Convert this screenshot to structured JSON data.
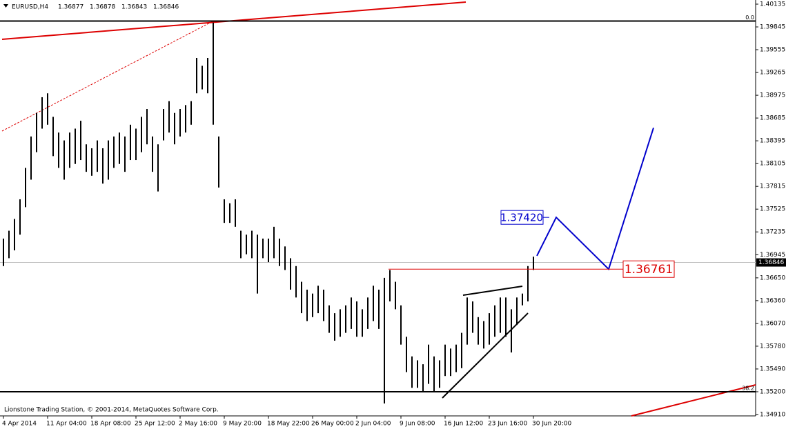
{
  "chart_data": {
    "type": "range",
    "symbol": "EURUSD,H4",
    "ohlc": [
      1.36877,
      1.36878,
      1.36843,
      1.36846
    ],
    "copyright": "Lionstone Trading Station, © 2001-2014, MetaQuotes Software Corp.",
    "categories": [
      "4 Apr 2014",
      null,
      null,
      null,
      null,
      null,
      null,
      null,
      "11 Apr 04:00",
      null,
      null,
      null,
      null,
      null,
      null,
      null,
      "18 Apr 08:00",
      null,
      null,
      null,
      null,
      null,
      null,
      null,
      "25 Apr 12:00",
      null,
      null,
      null,
      null,
      null,
      null,
      null,
      "2 May 16:00",
      null,
      null,
      null,
      null,
      null,
      null,
      null,
      "9 May 20:00",
      null,
      null,
      null,
      null,
      null,
      null,
      null,
      "18 May 22:00",
      null,
      null,
      null,
      null,
      null,
      null,
      null,
      "26 May 00:00",
      null,
      null,
      null,
      null,
      null,
      null,
      null,
      "2 Jun 04:00",
      null,
      null,
      null,
      null,
      null,
      null,
      null,
      "9 Jun 08:00",
      null,
      null,
      null,
      null,
      null,
      null,
      null,
      "16 Jun 12:00",
      null,
      null,
      null,
      null,
      null,
      null,
      null,
      "23 Jun 16:00",
      null,
      null,
      null,
      null,
      null,
      null,
      null,
      "30 Jun 20:00"
    ],
    "high": [
      1.3715,
      1.3725,
      1.374,
      1.3765,
      1.3805,
      1.3845,
      1.3875,
      1.3895,
      1.39,
      1.387,
      1.385,
      1.384,
      1.385,
      1.3855,
      1.3865,
      1.3835,
      1.383,
      1.384,
      1.383,
      1.384,
      1.3845,
      1.385,
      1.3845,
      1.386,
      1.3855,
      1.387,
      1.388,
      1.3845,
      1.3835,
      1.388,
      1.389,
      1.3875,
      1.388,
      1.3885,
      1.389,
      1.3945,
      1.3935,
      1.3945,
      1.399,
      1.3845,
      1.3765,
      1.376,
      1.3765,
      1.3725,
      1.372,
      1.3725,
      1.372,
      1.3715,
      1.3715,
      1.373,
      1.3715,
      1.3705,
      1.369,
      1.368,
      1.366,
      1.365,
      1.3645,
      1.3655,
      1.365,
      1.363,
      1.362,
      1.3625,
      1.363,
      1.364,
      1.3635,
      1.3625,
      1.364,
      1.3655,
      1.365,
      1.3665,
      1.3675,
      1.366,
      1.363,
      1.359,
      1.3565,
      1.356,
      1.3555,
      1.358,
      1.3565,
      1.356,
      1.358,
      1.3575,
      1.358,
      1.3595,
      1.364,
      1.3635,
      1.3615,
      1.361,
      1.362,
      1.363,
      1.364,
      1.364,
      1.3625,
      1.364,
      1.3645,
      1.368,
      1.3692
    ],
    "low": [
      1.368,
      1.369,
      1.37,
      1.372,
      1.3755,
      1.379,
      1.3825,
      1.3855,
      1.386,
      1.382,
      1.3805,
      1.379,
      1.3805,
      1.381,
      1.3815,
      1.38,
      1.3795,
      1.38,
      1.3785,
      1.379,
      1.3805,
      1.381,
      1.38,
      1.3815,
      1.3815,
      1.3825,
      1.3835,
      1.38,
      1.3775,
      1.384,
      1.385,
      1.3835,
      1.3845,
      1.385,
      1.386,
      1.39,
      1.3905,
      1.39,
      1.386,
      1.378,
      1.3735,
      1.3735,
      1.373,
      1.369,
      1.3695,
      1.369,
      1.3645,
      1.369,
      1.3685,
      1.369,
      1.368,
      1.3675,
      1.365,
      1.364,
      1.362,
      1.361,
      1.3615,
      1.362,
      1.361,
      1.3595,
      1.3585,
      1.359,
      1.3595,
      1.36,
      1.359,
      1.359,
      1.36,
      1.361,
      1.36,
      1.3505,
      1.3635,
      1.3625,
      1.358,
      1.3545,
      1.3525,
      1.3525,
      1.352,
      1.353,
      1.352,
      1.3525,
      1.354,
      1.354,
      1.3545,
      1.355,
      1.358,
      1.3595,
      1.358,
      1.3575,
      1.358,
      1.359,
      1.3595,
      1.359,
      1.357,
      1.3605,
      1.363,
      1.3635,
      1.3675
    ],
    "ylim": [
      1.3491,
      1.40135
    ],
    "yticks": [
      1.40135,
      1.39845,
      1.39555,
      1.39265,
      1.38975,
      1.38685,
      1.38395,
      1.38105,
      1.37815,
      1.37525,
      1.37235,
      1.36945,
      {
        "value": 1.3665,
        "label": "1.36650"
      },
      {
        "value": 1.3636,
        "label": "1.36360"
      },
      {
        "value": 1.3607,
        "label": "1.36070"
      },
      {
        "value": 1.3578,
        "label": "1.35780"
      },
      {
        "value": 1.3549,
        "label": "1.35490"
      },
      {
        "value": 1.352,
        "label": "1.35200"
      },
      {
        "value": 1.3491,
        "label": "1.34910"
      }
    ],
    "current_price": 1.36846,
    "fib_levels": [
      {
        "label": "0.0",
        "price": 1.3992
      },
      {
        "label": "38.2",
        "price": 1.352
      }
    ],
    "target_labels": [
      {
        "value": 1.3742,
        "label": "1.37420",
        "color": "#0000cc"
      },
      {
        "value": 1.36761,
        "label": "1.36761",
        "color": "#dd0000"
      }
    ],
    "projection": [
      1.3693,
      1.3742,
      1.36761,
      1.3856
    ],
    "color": "#000000"
  }
}
